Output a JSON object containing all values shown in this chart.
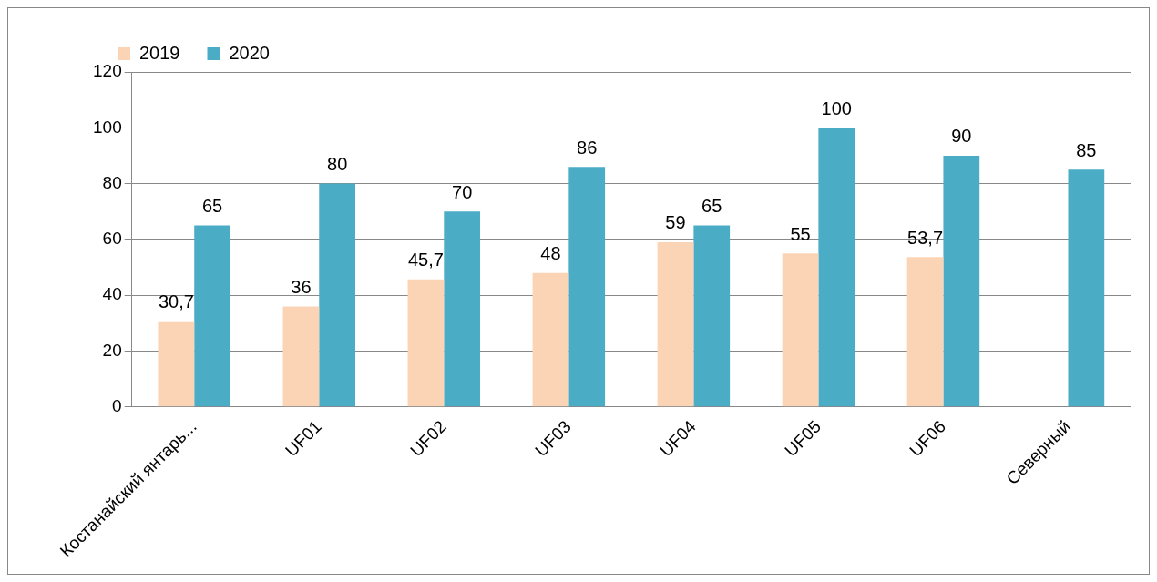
{
  "chart_data": {
    "type": "bar",
    "categories": [
      "Костанайский янтарь...",
      "UF01",
      "UF02",
      "UF03",
      "UF04",
      "UF05",
      "UF06",
      "Северный"
    ],
    "series": [
      {
        "name": "2019",
        "color": "#fad4b4",
        "values": [
          30.7,
          36,
          45.7,
          48,
          59,
          55,
          53.7,
          null
        ],
        "value_labels": [
          "30,7",
          "36",
          "45,7",
          "48",
          "59",
          "55",
          "53,7",
          null
        ]
      },
      {
        "name": "2020",
        "color": "#4bacc6",
        "values": [
          65,
          80,
          70,
          86,
          65,
          100,
          90,
          85
        ],
        "value_labels": [
          "65",
          "80",
          "70",
          "86",
          "65",
          "100",
          "90",
          "85"
        ]
      }
    ],
    "ylim": [
      0,
      120
    ],
    "yticks": [
      0,
      20,
      40,
      60,
      80,
      100,
      120
    ],
    "grid": "y",
    "legend": "top left"
  }
}
